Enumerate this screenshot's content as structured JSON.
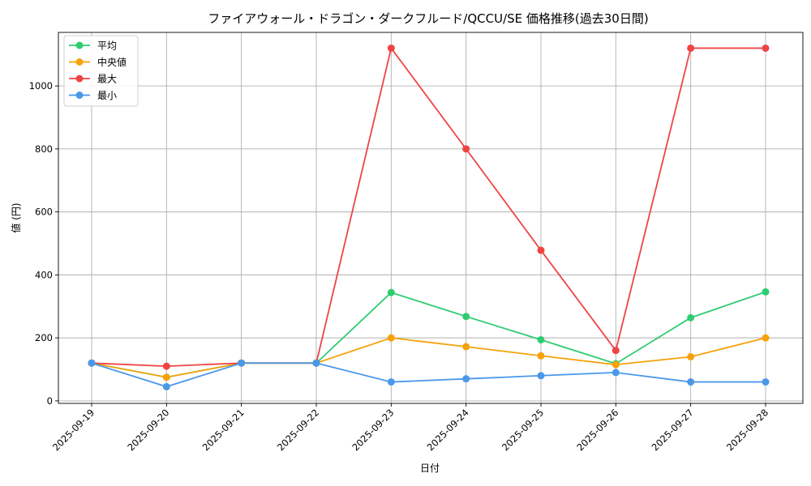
{
  "chart_data": {
    "type": "line",
    "title": "ファイアウォール・ドラゴン・ダークフルード/QCCU/SE 価格推移(過去30日間)",
    "xlabel": "日付",
    "ylabel": "値 (円)",
    "categories": [
      "2025-09-19",
      "2025-09-20",
      "2025-09-21",
      "2025-09-22",
      "2025-09-23",
      "2025-09-24",
      "2025-09-25",
      "2025-09-26",
      "2025-09-27",
      "2025-09-28"
    ],
    "ylim": [
      -8,
      1170
    ],
    "yticks": [
      0,
      200,
      400,
      600,
      800,
      1000
    ],
    "grid": true,
    "legend_position": "top-left",
    "series": [
      {
        "name": "平均",
        "color": "#2ecc71",
        "values": [
          120,
          75,
          120,
          120,
          344,
          268,
          194,
          118,
          264,
          346
        ]
      },
      {
        "name": "中央値",
        "color": "#f5a20a",
        "values": [
          120,
          75,
          120,
          120,
          200,
          172,
          143,
          115,
          140,
          200
        ]
      },
      {
        "name": "最大",
        "color": "#ef4444",
        "values": [
          120,
          110,
          120,
          120,
          1120,
          800,
          478,
          160,
          1120,
          1120
        ]
      },
      {
        "name": "最小",
        "color": "#4a98ea",
        "values": [
          120,
          45,
          120,
          120,
          60,
          70,
          80,
          90,
          60,
          60
        ]
      }
    ]
  }
}
